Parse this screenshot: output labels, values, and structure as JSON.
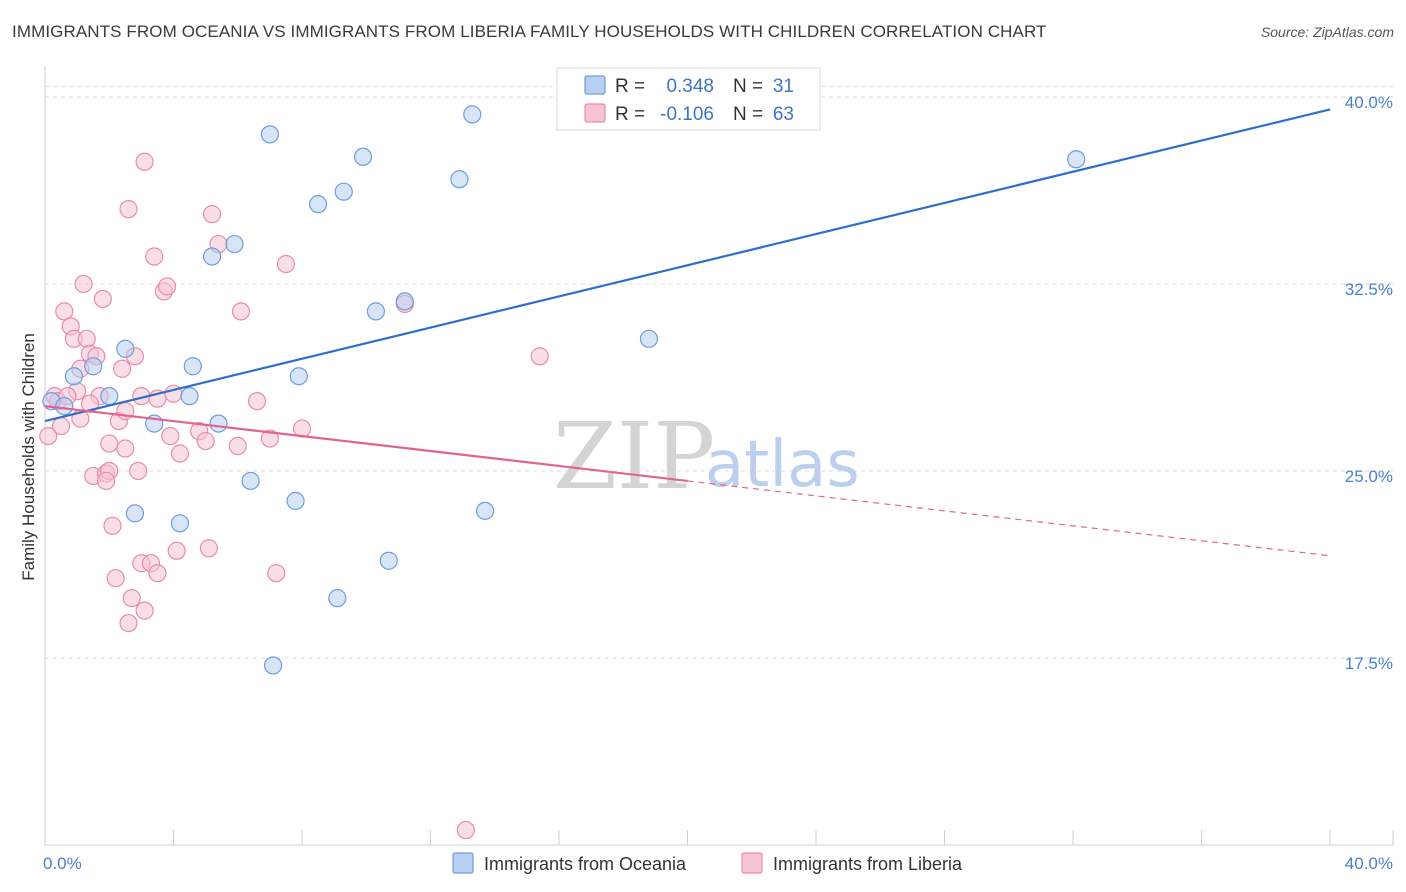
{
  "header": {
    "title": "IMMIGRANTS FROM OCEANIA VS IMMIGRANTS FROM LIBERIA FAMILY HOUSEHOLDS WITH CHILDREN CORRELATION CHART",
    "source": "Source: ZipAtlas.com"
  },
  "watermark": {
    "zip": "ZIP",
    "atlas": "atlas"
  },
  "colors": {
    "oceania_fill": "#b7cff0",
    "oceania_stroke": "#6f9de0",
    "oceania_line": "#2f6fcc",
    "liberia_fill": "#f6c3d4",
    "liberia_stroke": "#e98cab",
    "liberia_line": "#e0648f",
    "grid": "#dddddd",
    "tick_label": "#4a7fd0"
  },
  "legend": {
    "rows": [
      {
        "r_label": "R =",
        "r_value": "0.348",
        "n_label": "N =",
        "n_value": "31"
      },
      {
        "r_label": "R =",
        "r_value": "-0.106",
        "n_label": "N =",
        "n_value": "63"
      }
    ]
  },
  "chart_data": {
    "type": "scatter",
    "xlabel": "",
    "ylabel": "Family Households with Children",
    "xlim": [
      0,
      40
    ],
    "ylim": [
      10,
      41
    ],
    "x_tick_labels": [
      "0.0%",
      "40.0%"
    ],
    "y_ticks": [
      17.5,
      25.0,
      32.5,
      40.0
    ],
    "y_tick_labels": [
      "17.5%",
      "25.0%",
      "32.5%",
      "40.0%"
    ],
    "grid": true,
    "legend_position": "top-center",
    "series": [
      {
        "name": "Immigrants from Oceania",
        "r": 0.348,
        "n": 31,
        "trend": {
          "x0": 0.0,
          "y0": 27.0,
          "x1": 40.0,
          "y1": 39.5
        },
        "points": [
          [
            0.2,
            27.8
          ],
          [
            0.6,
            27.6
          ],
          [
            0.9,
            28.8
          ],
          [
            1.5,
            29.2
          ],
          [
            2.0,
            28.0
          ],
          [
            2.5,
            29.9
          ],
          [
            2.8,
            23.3
          ],
          [
            3.4,
            26.9
          ],
          [
            4.2,
            22.9
          ],
          [
            4.6,
            29.2
          ],
          [
            4.5,
            28.0
          ],
          [
            5.2,
            33.6
          ],
          [
            5.4,
            26.9
          ],
          [
            5.9,
            34.1
          ],
          [
            6.4,
            24.6
          ],
          [
            7.0,
            38.5
          ],
          [
            7.1,
            17.2
          ],
          [
            7.8,
            23.8
          ],
          [
            7.9,
            28.8
          ],
          [
            8.5,
            35.7
          ],
          [
            9.1,
            19.9
          ],
          [
            9.3,
            36.2
          ],
          [
            9.9,
            37.6
          ],
          [
            10.3,
            31.4
          ],
          [
            10.7,
            21.4
          ],
          [
            11.2,
            31.8
          ],
          [
            12.9,
            36.7
          ],
          [
            13.3,
            39.3
          ],
          [
            13.7,
            23.4
          ],
          [
            18.8,
            30.3
          ],
          [
            32.1,
            37.5
          ]
        ]
      },
      {
        "name": "Immigrants from Liberia",
        "r": -0.106,
        "n": 63,
        "trend": {
          "x0": 0.0,
          "y0": 27.6,
          "x1": 20.0,
          "y1": 24.6
        },
        "trend_extension": {
          "x0": 20.0,
          "y0": 24.6,
          "x1": 40.0,
          "y1": 21.6
        },
        "points": [
          [
            0.1,
            26.4
          ],
          [
            0.3,
            28.0
          ],
          [
            0.4,
            27.8
          ],
          [
            0.5,
            26.8
          ],
          [
            0.6,
            31.4
          ],
          [
            0.8,
            30.8
          ],
          [
            0.9,
            30.3
          ],
          [
            1.0,
            28.2
          ],
          [
            1.1,
            29.1
          ],
          [
            1.2,
            32.5
          ],
          [
            1.3,
            30.3
          ],
          [
            1.4,
            29.7
          ],
          [
            1.5,
            24.8
          ],
          [
            1.6,
            29.6
          ],
          [
            1.7,
            28.0
          ],
          [
            1.8,
            31.9
          ],
          [
            1.9,
            24.9
          ],
          [
            2.0,
            25.0
          ],
          [
            2.1,
            22.8
          ],
          [
            2.2,
            20.7
          ],
          [
            2.3,
            27.0
          ],
          [
            2.4,
            29.1
          ],
          [
            2.5,
            25.9
          ],
          [
            2.6,
            18.9
          ],
          [
            2.6,
            35.5
          ],
          [
            2.7,
            19.9
          ],
          [
            2.8,
            29.6
          ],
          [
            2.9,
            25.0
          ],
          [
            3.0,
            28.0
          ],
          [
            3.0,
            21.3
          ],
          [
            3.1,
            19.4
          ],
          [
            3.1,
            37.4
          ],
          [
            3.3,
            21.3
          ],
          [
            3.4,
            33.6
          ],
          [
            3.5,
            20.9
          ],
          [
            3.7,
            32.2
          ],
          [
            3.8,
            32.4
          ],
          [
            3.9,
            26.4
          ],
          [
            4.1,
            21.8
          ],
          [
            4.2,
            25.7
          ],
          [
            4.8,
            26.6
          ],
          [
            5.0,
            26.2
          ],
          [
            5.1,
            21.9
          ],
          [
            5.2,
            35.3
          ],
          [
            5.4,
            34.1
          ],
          [
            6.1,
            31.4
          ],
          [
            6.6,
            27.8
          ],
          [
            7.0,
            26.3
          ],
          [
            7.2,
            20.9
          ],
          [
            7.5,
            33.3
          ],
          [
            8.0,
            26.7
          ],
          [
            11.2,
            31.7
          ],
          [
            13.1,
            10.6
          ],
          [
            15.4,
            29.6
          ],
          [
            1.4,
            27.7
          ],
          [
            2.0,
            26.1
          ],
          [
            0.7,
            28.0
          ],
          [
            1.9,
            24.6
          ],
          [
            2.5,
            27.4
          ],
          [
            1.1,
            27.1
          ],
          [
            3.5,
            27.9
          ],
          [
            6.0,
            26.0
          ],
          [
            4.0,
            28.1
          ]
        ]
      }
    ]
  }
}
